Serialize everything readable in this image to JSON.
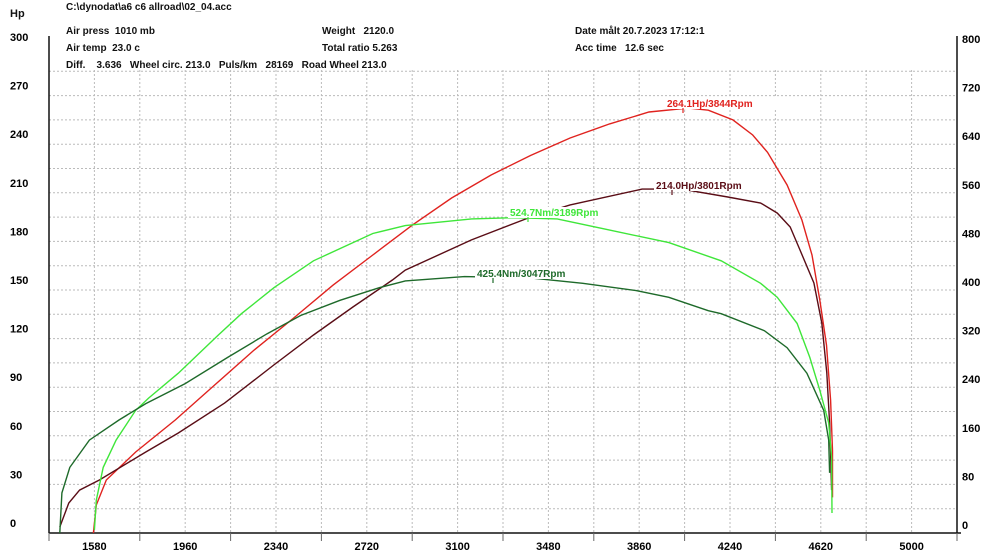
{
  "header": {
    "file_path": "C:\\dynodat\\a6 c6 allroad\\02_04.acc",
    "air_press": "Air press  1010 mb",
    "air_temp": "Air temp  23.0 c",
    "diff_line": "Diff.    3.636   Wheel circ. 213.0   Puls/km   28169   Road Wheel 213.0",
    "weight": "Weight   2120.0",
    "total_ratio": "Total ratio 5.263",
    "date": "Date målt 20.7.2023 17:12:1",
    "acc_time": "Acc time   12.6 sec"
  },
  "chart_data": {
    "type": "line",
    "xlabel": "",
    "ylabel_left": "Hp",
    "ylabel_right": "",
    "xlim": [
      1390,
      5190
    ],
    "ylim_left": [
      0,
      300
    ],
    "ylim_right": [
      0,
      800
    ],
    "grid": true,
    "x_ticks": [
      "1580",
      "1960",
      "2340",
      "2720",
      "3100",
      "3480",
      "3860",
      "4240",
      "4620",
      "5000"
    ],
    "y_ticks_left": [
      "300",
      "270",
      "240",
      "210",
      "180",
      "150",
      "120",
      "90",
      "60",
      "30",
      "0"
    ],
    "y_ticks_right": [
      "800",
      "720",
      "640",
      "560",
      "480",
      "400",
      "320",
      "240",
      "160",
      "80",
      "0"
    ],
    "colors": {
      "hp_red": "#e0231f",
      "hp_dark": "#5a0d16",
      "nm_bright": "#3fe63a",
      "nm_dark": "#1e6a2a"
    },
    "series": [
      {
        "key": "hp_red",
        "axis": "left",
        "peak_label": "264.1Hp/3844Rpm",
        "x": [
          1576,
          1588,
          1630,
          1753,
          1919,
          2084,
          2249,
          2414,
          2579,
          2745,
          2910,
          3075,
          3240,
          3405,
          3571,
          3736,
          3901,
          4066,
          4149,
          4252,
          4335,
          4397,
          4479,
          4541,
          4583,
          4616,
          4644,
          4661,
          4669,
          4669
        ],
        "y": [
          0,
          17.3,
          32.7,
          50,
          69.8,
          91.4,
          113,
          132.7,
          153,
          171.6,
          190,
          206.8,
          221,
          233,
          243.8,
          252.5,
          259.9,
          262.3,
          261,
          255,
          245.7,
          235,
          214.8,
          193.2,
          171.6,
          143.8,
          116,
          82,
          51,
          22
        ]
      },
      {
        "key": "hp_dark",
        "axis": "left",
        "peak_label": "214.0Hp/3801Rpm",
        "x": [
          1435,
          1473,
          1518,
          1601,
          1795,
          1931,
          2125,
          2331,
          2497,
          2662,
          2827,
          2881,
          3158,
          3405,
          3571,
          3872,
          4037,
          4231,
          4368,
          4438,
          4492,
          4533,
          4591,
          4624,
          4645,
          4657,
          4661,
          4665
        ],
        "y": [
          3.7,
          18.5,
          26.5,
          32.7,
          50,
          61.7,
          80.2,
          103.7,
          122.2,
          139.5,
          156.2,
          162.3,
          180.9,
          195,
          202.5,
          212.3,
          212.3,
          207.4,
          203.7,
          197.5,
          188.9,
          174.7,
          154.3,
          129.6,
          98.8,
          67.9,
          49.4,
          26.5
        ]
      },
      {
        "key": "nm_bright",
        "axis": "right",
        "peak_label": "524.7Nm/3189Rpm",
        "x": [
          1580,
          1588,
          1617,
          1671,
          1753,
          1807,
          1931,
          2096,
          2195,
          2332,
          2497,
          2745,
          2881,
          3158,
          3335,
          3517,
          3707,
          3984,
          4203,
          4368,
          4438,
          4521,
          4574,
          4616,
          4653,
          4665,
          4667
        ],
        "y": [
          4.9,
          54,
          108,
          153,
          202,
          222,
          263,
          325,
          361,
          404,
          448,
          493,
          506,
          517,
          519,
          517,
          501,
          478,
          448,
          411,
          388,
          345,
          289,
          235,
          181,
          125,
          33
        ]
      },
      {
        "key": "nm_dark",
        "axis": "right",
        "peak_label": "425.4Nm/3047Rpm",
        "x": [
          1435,
          1444,
          1477,
          1559,
          1683,
          1795,
          1960,
          2138,
          2303,
          2443,
          2608,
          2774,
          2881,
          3129,
          3405,
          3624,
          3847,
          3984,
          4149,
          4203,
          4384,
          4479,
          4562,
          4632,
          4653,
          4657
        ],
        "y": [
          0,
          66,
          108,
          153,
          186,
          213,
          246,
          289,
          328,
          358,
          383,
          404,
          415,
          422,
          420,
          411,
          399,
          388,
          366,
          361,
          333,
          305,
          263,
          202,
          153,
          99
        ]
      }
    ]
  }
}
